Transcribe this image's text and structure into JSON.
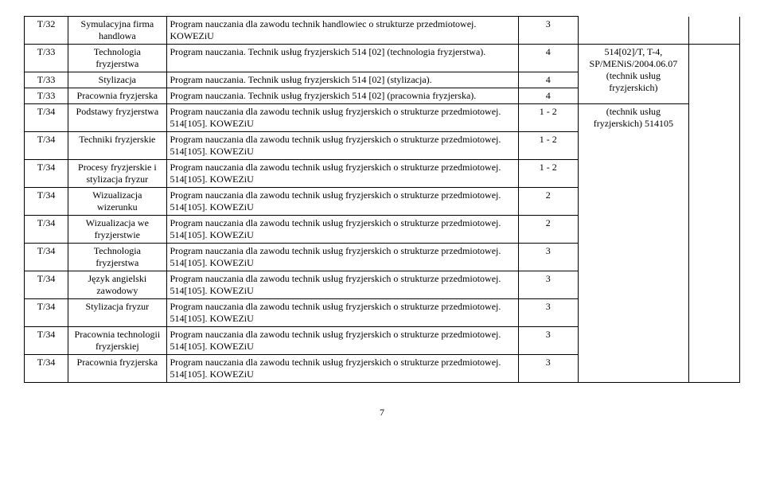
{
  "page_number": "7",
  "rows": [
    {
      "code": "T/32",
      "subject": "Symulacyjna firma handlowa",
      "program": "Program nauczania dla zawodu technik handlowiec o strukturze przedmiotowej. KOWEZiU",
      "num": "3"
    },
    {
      "code": "T/33",
      "subject": "Technologia fryzjerstwa",
      "program": "Program nauczania. Technik usług fryzjerskich 514 [02] (technologia fryzjerstwa).",
      "num": "4"
    },
    {
      "code": "T/33",
      "subject": "Stylizacja",
      "program": "Program nauczania. Technik usług fryzjerskich 514 [02] (stylizacja).",
      "num": "4"
    },
    {
      "code": "T/33",
      "subject": "Pracownia fryzjerska",
      "program": "Program nauczania. Technik usług fryzjerskich 514 [02] (pracownia fryzjerska).",
      "num": "4"
    },
    {
      "code": "T/34",
      "subject": "Podstawy fryzjerstwa",
      "program": "Program nauczania dla zawodu technik usług fryzjerskich o strukturze przedmiotowej. 514[105]. KOWEZiU",
      "num": "1 - 2"
    },
    {
      "code": "T/34",
      "subject": "Techniki fryzjerskie",
      "program": "Program nauczania dla zawodu technik usług fryzjerskich o strukturze przedmiotowej. 514[105]. KOWEZiU",
      "num": "1 - 2"
    },
    {
      "code": "T/34",
      "subject": "Procesy fryzjerskie i stylizacja fryzur",
      "program": "Program nauczania dla zawodu technik usług fryzjerskich o strukturze przedmiotowej. 514[105]. KOWEZiU",
      "num": "1 - 2"
    },
    {
      "code": "T/34",
      "subject": "Wizualizacja wizerunku",
      "program": "Program nauczania dla zawodu technik usług fryzjerskich o strukturze przedmiotowej. 514[105]. KOWEZiU",
      "num": "2"
    },
    {
      "code": "T/34",
      "subject": "Wizualizacja we fryzjerstwie",
      "program": "Program nauczania dla zawodu technik usług fryzjerskich o strukturze przedmiotowej. 514[105]. KOWEZiU",
      "num": "2"
    },
    {
      "code": "T/34",
      "subject": "Technologia fryzjerstwa",
      "program": "Program nauczania dla zawodu technik usług fryzjerskich o strukturze przedmiotowej. 514[105]. KOWEZiU",
      "num": "3"
    },
    {
      "code": "T/34",
      "subject": "Język angielski zawodowy",
      "program": "Program nauczania dla zawodu technik usług fryzjerskich o strukturze przedmiotowej. 514[105]. KOWEZiU",
      "num": "3"
    },
    {
      "code": "T/34",
      "subject": "Stylizacja fryzur",
      "program": "Program nauczania dla zawodu technik usług fryzjerskich o strukturze przedmiotowej. 514[105]. KOWEZiU",
      "num": "3"
    },
    {
      "code": "T/34",
      "subject": "Pracownia technologii fryzjerskiej",
      "program": "Program nauczania dla zawodu technik usług fryzjerskich o strukturze przedmiotowej. 514[105]. KOWEZiU",
      "num": "3"
    },
    {
      "code": "T/34",
      "subject": "Pracownia fryzjerska",
      "program": "Program nauczania dla zawodu technik usług fryzjerskich o strukturze przedmiotowej. 514[105]. KOWEZiU",
      "num": "3"
    }
  ],
  "note_top": "514[02]/T, T-4, SP/MENiS/2004.06.07 (technik usług fryzjerskich)",
  "note_bottom": "(technik usług fryzjerskich) 514105"
}
